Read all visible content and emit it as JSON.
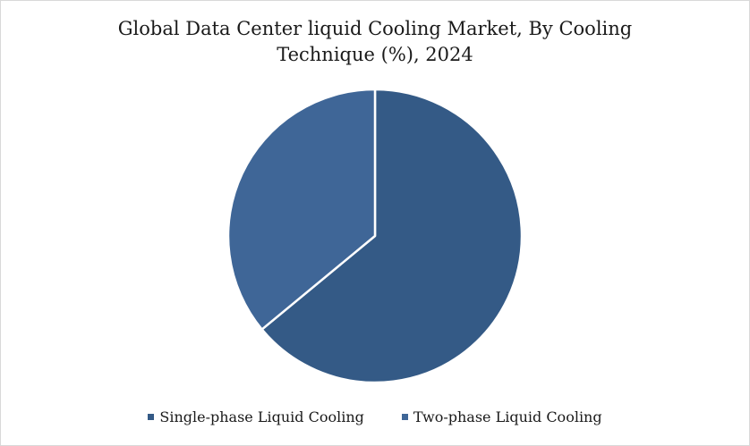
{
  "chart_data": {
    "type": "pie",
    "title_lines": [
      "Global Data Center liquid Cooling Market, By Cooling",
      "Technique (%), 2024"
    ],
    "series": [
      {
        "name": "Single-phase Liquid Cooling",
        "value": 64,
        "color": "#345a86"
      },
      {
        "name": "Two-phase Liquid Cooling",
        "value": 36,
        "color": "#3f6697"
      }
    ],
    "start_angle_deg": 0,
    "direction": "clockwise",
    "legend_position": "bottom"
  }
}
